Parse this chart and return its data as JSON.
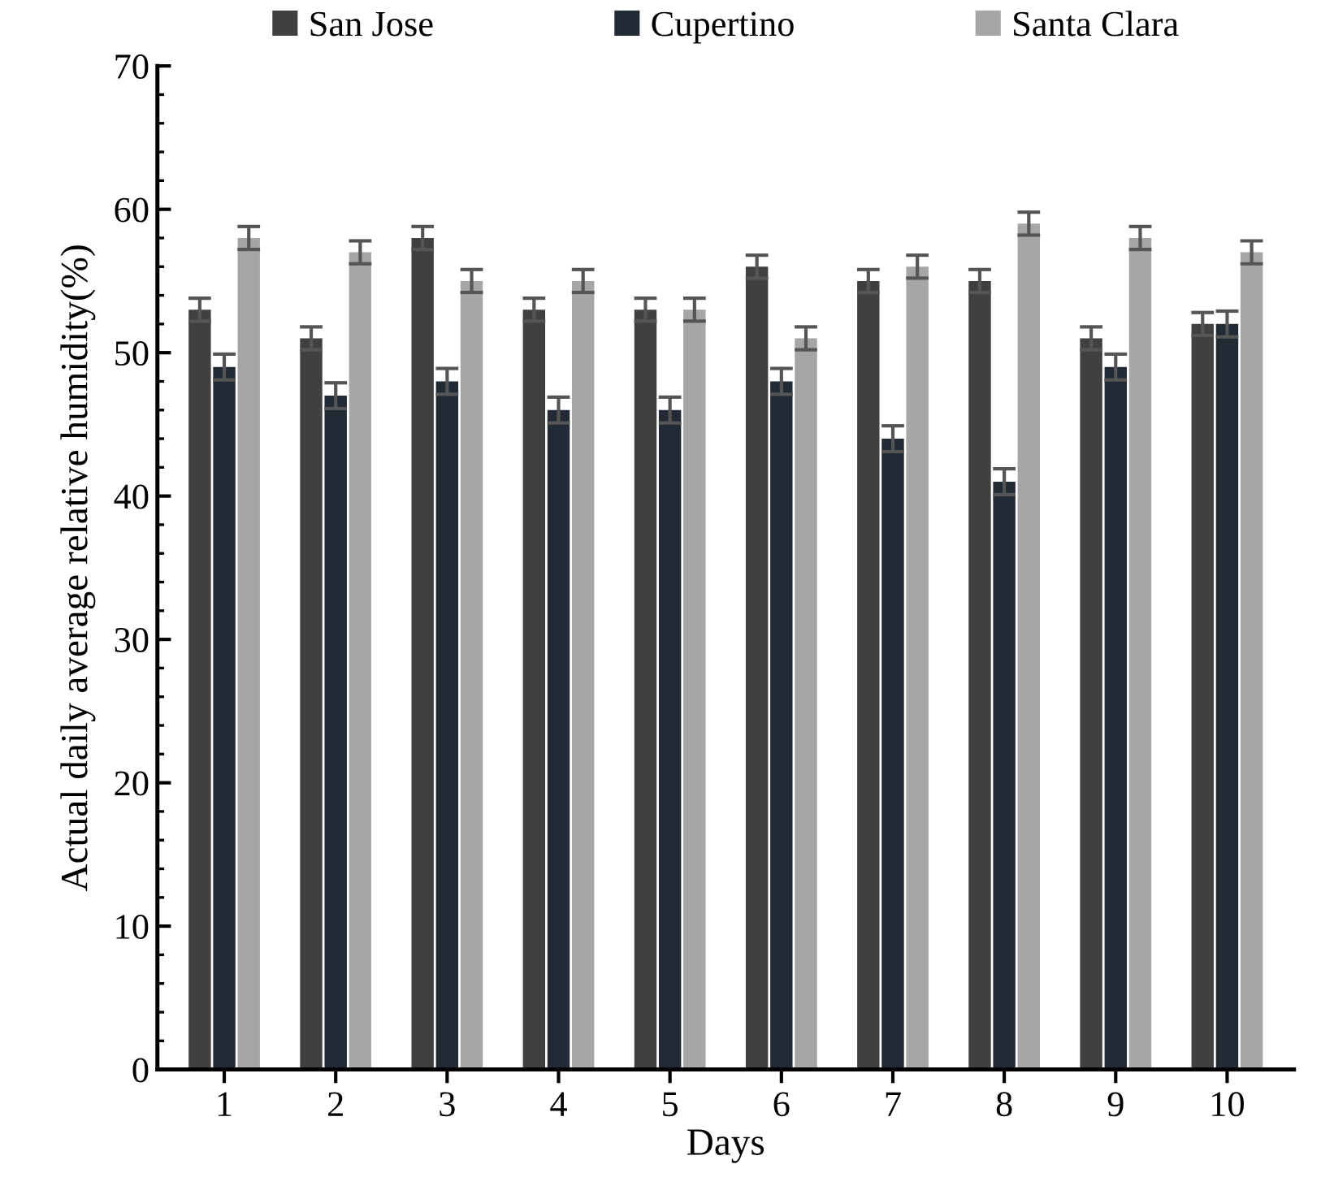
{
  "chart_data": {
    "type": "bar",
    "xlabel": "Days",
    "ylabel": "Actual daily average relative humidity(%)",
    "categories": [
      "1",
      "2",
      "3",
      "4",
      "5",
      "6",
      "7",
      "8",
      "9",
      "10"
    ],
    "series": [
      {
        "name": "San Jose",
        "color": "#404040",
        "values": [
          53,
          51,
          58,
          53,
          53,
          56,
          55,
          55,
          51,
          52
        ],
        "errors": [
          0.8,
          0.8,
          0.8,
          0.8,
          0.8,
          0.8,
          0.8,
          0.8,
          0.8,
          0.8
        ]
      },
      {
        "name": "Cupertino",
        "color": "#222a36",
        "values": [
          49,
          47,
          48,
          46,
          46,
          48,
          44,
          41,
          49,
          52
        ],
        "errors": [
          0.9,
          0.9,
          0.9,
          0.9,
          0.9,
          0.9,
          0.9,
          0.9,
          0.9,
          0.9
        ]
      },
      {
        "name": "Santa Clara",
        "color": "#a6a6a6",
        "values": [
          58,
          57,
          55,
          55,
          53,
          51,
          56,
          59,
          58,
          57
        ],
        "errors": [
          0.8,
          0.8,
          0.8,
          0.8,
          0.8,
          0.8,
          0.8,
          0.8,
          0.8,
          0.8
        ]
      }
    ],
    "ylim": [
      0,
      70
    ],
    "yticks": [
      0,
      10,
      20,
      30,
      40,
      50,
      60,
      70
    ],
    "grid": false,
    "legend": "top"
  }
}
